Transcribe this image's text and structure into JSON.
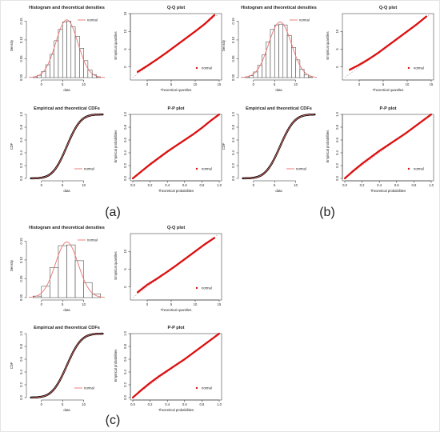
{
  "colors": {
    "fit": "#e8736f",
    "points": "#dd1111",
    "ecdf": "#000000",
    "bars": "#ffffff",
    "axis": "#222222"
  },
  "chart_data": [
    {
      "type": "histogram-density",
      "panel": "(a)",
      "title": "Histogram and theoretical densities",
      "xlabel": "data",
      "ylabel": "Density",
      "legend": "normal",
      "legend_position": "top-right",
      "xlim": [
        -3,
        15
      ],
      "ylim": [
        0,
        0.17
      ],
      "xticks": [
        "0",
        "5",
        "10"
      ],
      "yticks": [
        "0.00",
        "0.05",
        "0.10",
        "0.15"
      ],
      "bins": [
        -2,
        -1,
        0,
        1,
        2,
        3,
        4,
        5,
        6,
        7,
        8,
        9,
        10,
        11,
        12,
        13,
        14
      ],
      "values": [
        0.002,
        0.006,
        0.016,
        0.034,
        0.062,
        0.098,
        0.128,
        0.148,
        0.15,
        0.135,
        0.11,
        0.078,
        0.045,
        0.02,
        0.008,
        0.002
      ],
      "fit": {
        "mean": 6,
        "sd": 2.6
      }
    },
    {
      "type": "qq",
      "panel": "(a)",
      "title": "Q-Q plot",
      "xlabel": "Theoretical quantiles",
      "ylabel": "Empirical quantiles",
      "legend": "normal",
      "legend_position": "bottom-right",
      "xlim": [
        -3,
        15
      ],
      "ylim": [
        -3,
        15
      ],
      "xticks": [
        "0",
        "5",
        "10",
        "15"
      ],
      "yticks": [
        "0",
        "5",
        "10",
        "15"
      ],
      "reference_line": [
        [
          -3,
          -3
        ],
        [
          15,
          15
        ]
      ],
      "series": [
        {
          "x": [
            -2,
            0,
            2,
            4,
            6,
            8,
            10,
            12,
            14
          ],
          "y": [
            -1.4,
            0.3,
            2.1,
            4,
            6,
            8,
            10,
            12.1,
            14.6
          ]
        }
      ]
    },
    {
      "type": "ecdf",
      "panel": "(a)",
      "title": "Empirical and theoretical CDFs",
      "xlabel": "data",
      "ylabel": "CDF",
      "legend": "normal",
      "legend_position": "bottom-right",
      "xlim": [
        -3,
        15
      ],
      "ylim": [
        0,
        1
      ],
      "xticks": [
        "0",
        "5",
        "10"
      ],
      "yticks": [
        "0.0",
        "0.2",
        "0.4",
        "0.6",
        "0.8",
        "1.0"
      ],
      "fit": {
        "mean": 6,
        "sd": 2.6
      }
    },
    {
      "type": "pp",
      "panel": "(a)",
      "title": "P-P plot",
      "xlabel": "Theoretical probabilities",
      "ylabel": "Empirical probabilities",
      "legend": "normal",
      "legend_position": "bottom-right",
      "xlim": [
        0,
        1
      ],
      "ylim": [
        0,
        1
      ],
      "xticks": [
        "0.0",
        "0.2",
        "0.4",
        "0.6",
        "0.8",
        "1.0"
      ],
      "yticks": [
        "0.0",
        "0.2",
        "0.4",
        "0.6",
        "0.8",
        "1.0"
      ],
      "reference_line": [
        [
          0,
          0
        ],
        [
          1,
          1
        ]
      ],
      "series": [
        {
          "x": [
            0,
            0.1,
            0.2,
            0.3,
            0.4,
            0.5,
            0.6,
            0.7,
            0.8,
            0.9,
            1
          ],
          "y": [
            0,
            0.11,
            0.22,
            0.32,
            0.42,
            0.51,
            0.6,
            0.69,
            0.79,
            0.9,
            1
          ]
        }
      ]
    },
    {
      "type": "histogram-density",
      "panel": "(b)",
      "title": "Histogram and theoretical densities",
      "xlabel": "data",
      "ylabel": "Density",
      "legend": "normal",
      "legend_position": "top-right",
      "xlim": [
        -3,
        15
      ],
      "ylim": [
        0,
        0.17
      ],
      "xticks": [
        "0",
        "5",
        "10"
      ],
      "yticks": [
        "0.00",
        "0.05",
        "0.10",
        "0.15"
      ],
      "bins": [
        -2,
        -1,
        0,
        1,
        2,
        3,
        4,
        5,
        6,
        7,
        8,
        9,
        10,
        11,
        12,
        13,
        14
      ],
      "values": [
        0.002,
        0.005,
        0.015,
        0.033,
        0.06,
        0.095,
        0.128,
        0.14,
        0.142,
        0.14,
        0.112,
        0.08,
        0.047,
        0.022,
        0.008,
        0.002
      ],
      "fit": {
        "mean": 6.3,
        "sd": 2.7
      }
    },
    {
      "type": "qq",
      "panel": "(b)",
      "title": "Q-Q plot",
      "xlabel": "Theoretical quantiles",
      "ylabel": "Empirical quantiles",
      "legend": "normal",
      "legend_position": "bottom-right",
      "xlim": [
        -3,
        15
      ],
      "ylim": [
        -3,
        15
      ],
      "xticks": [
        "0",
        "5",
        "10",
        "15"
      ],
      "yticks": [
        "0",
        "5",
        "10"
      ],
      "reference_line": [
        [
          -3,
          -3
        ],
        [
          15,
          15
        ]
      ],
      "series": [
        {
          "x": [
            -2,
            0,
            2,
            4,
            6,
            8,
            10,
            12,
            14
          ],
          "y": [
            -0.8,
            0.6,
            2.2,
            4,
            6,
            8,
            10,
            12,
            14.2
          ]
        }
      ]
    },
    {
      "type": "ecdf",
      "panel": "(b)",
      "title": "Empirical and theoretical CDFs",
      "xlabel": "data",
      "ylabel": "CDF",
      "legend": "normal",
      "legend_position": "bottom-right",
      "xlim": [
        -3,
        15
      ],
      "ylim": [
        0,
        1
      ],
      "xticks": [
        "0",
        "5",
        "10"
      ],
      "yticks": [
        "0.0",
        "0.2",
        "0.4",
        "0.6",
        "0.8",
        "1.0"
      ],
      "fit": {
        "mean": 6.3,
        "sd": 2.7
      }
    },
    {
      "type": "pp",
      "panel": "(b)",
      "title": "P-P plot",
      "xlabel": "Theoretical probabilities",
      "ylabel": "Empirical probabilities",
      "legend": "normal",
      "legend_position": "bottom-right",
      "xlim": [
        0,
        1
      ],
      "ylim": [
        0,
        1
      ],
      "xticks": [
        "0.0",
        "0.2",
        "0.4",
        "0.6",
        "0.8",
        "1.0"
      ],
      "yticks": [
        "0.0",
        "0.2",
        "0.4",
        "0.6",
        "0.8",
        "1.0"
      ],
      "reference_line": [
        [
          0,
          0
        ],
        [
          1,
          1
        ]
      ],
      "series": [
        {
          "x": [
            0,
            0.1,
            0.2,
            0.3,
            0.4,
            0.5,
            0.6,
            0.7,
            0.8,
            0.9,
            1
          ],
          "y": [
            0,
            0.12,
            0.23,
            0.33,
            0.43,
            0.52,
            0.61,
            0.7,
            0.8,
            0.9,
            1
          ]
        }
      ]
    },
    {
      "type": "histogram-density",
      "panel": "(c)",
      "title": "Histogram and theoretical densities",
      "xlabel": "data",
      "ylabel": "Density",
      "legend": "normal",
      "legend_position": "top-right",
      "xlim": [
        -3,
        15
      ],
      "ylim": [
        0,
        0.17
      ],
      "xticks": [
        "0",
        "5",
        "10"
      ],
      "yticks": [
        "0.00",
        "0.05",
        "0.10",
        "0.15"
      ],
      "bins": [
        -2,
        0,
        2,
        4,
        6,
        8,
        10,
        12,
        14
      ],
      "values": [
        0.004,
        0.03,
        0.08,
        0.138,
        0.14,
        0.098,
        0.04,
        0.01
      ],
      "fit": {
        "mean": 6,
        "sd": 2.7
      }
    },
    {
      "type": "qq",
      "panel": "(c)",
      "title": "Q-Q plot",
      "xlabel": "Theoretical quantiles",
      "ylabel": "Empirical quantiles",
      "legend": "normal",
      "legend_position": "bottom-right",
      "xlim": [
        -3,
        15
      ],
      "ylim": [
        -3,
        15
      ],
      "xticks": [
        "0",
        "5",
        "10",
        "15"
      ],
      "yticks": [
        "0",
        "5",
        "10"
      ],
      "reference_line": [
        [
          -3,
          -3
        ],
        [
          15,
          15
        ]
      ],
      "series": [
        {
          "x": [
            -2,
            0,
            2,
            4,
            6,
            8,
            10,
            12,
            14
          ],
          "y": [
            -1.5,
            0.6,
            2.3,
            4.1,
            6,
            8,
            10,
            12,
            13.8
          ]
        }
      ]
    },
    {
      "type": "ecdf",
      "panel": "(c)",
      "title": "Empirical and theoretical CDFs",
      "xlabel": "data",
      "ylabel": "CDF",
      "legend": "normal",
      "legend_position": "bottom-right",
      "xlim": [
        -3,
        15
      ],
      "ylim": [
        0,
        1
      ],
      "xticks": [
        "0",
        "5",
        "10"
      ],
      "yticks": [
        "0.0",
        "0.2",
        "0.4",
        "0.6",
        "0.8",
        "1.0"
      ],
      "fit": {
        "mean": 6,
        "sd": 2.7
      }
    },
    {
      "type": "pp",
      "panel": "(c)",
      "title": "P-P plot",
      "xlabel": "Theoretical probabilities",
      "ylabel": "Empirical probabilities",
      "legend": "normal",
      "legend_position": "bottom-right",
      "xlim": [
        0,
        1
      ],
      "ylim": [
        0,
        1
      ],
      "xticks": [
        "0.0",
        "0.2",
        "0.4",
        "0.6",
        "0.8",
        "1.0"
      ],
      "yticks": [
        "0.0",
        "0.2",
        "0.4",
        "0.6",
        "0.8",
        "1.0"
      ],
      "reference_line": [
        [
          0,
          0
        ],
        [
          1,
          1
        ]
      ],
      "series": [
        {
          "x": [
            0,
            0.1,
            0.2,
            0.3,
            0.4,
            0.5,
            0.6,
            0.7,
            0.8,
            0.9,
            1
          ],
          "y": [
            0,
            0.12,
            0.23,
            0.33,
            0.42,
            0.51,
            0.6,
            0.7,
            0.8,
            0.9,
            1
          ]
        }
      ]
    }
  ],
  "panel_labels": [
    "(a)",
    "(b)",
    "(c)"
  ]
}
